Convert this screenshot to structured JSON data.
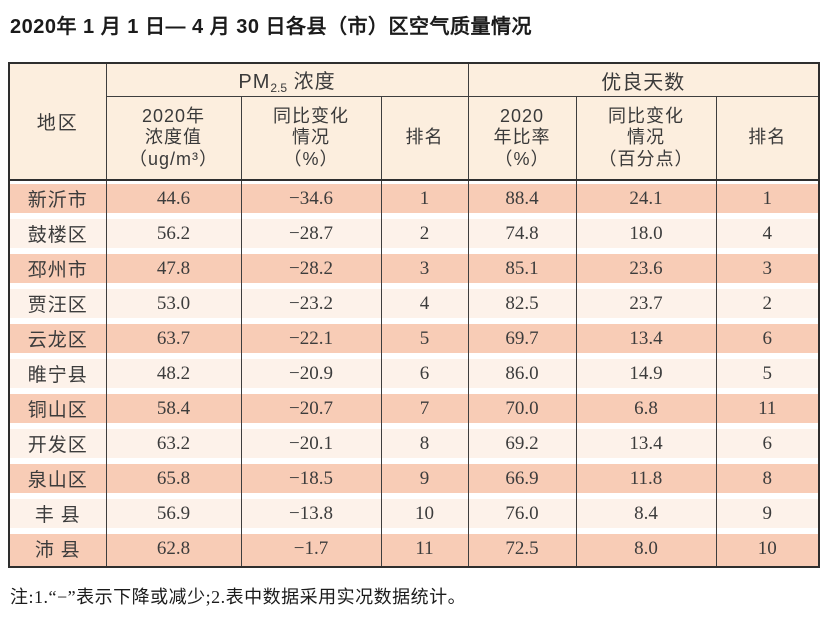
{
  "title": "2020年 1 月 1 日— 4 月 30 日各县（市）区空气质量情况",
  "colors": {
    "row-odd": "#f8ccb6",
    "row-even": "#fdf2ea",
    "header-bg": "#fceede",
    "line": "#3e3e3e",
    "outer": "#2e2e2e"
  },
  "table": {
    "head": {
      "region": "地区",
      "pm25_group": {
        "pm": "PM",
        "sub": "2.5",
        "rest": " 浓度"
      },
      "good_days_group": "优良天数",
      "pm_value": {
        "l1": "2020年",
        "l2": "浓度值",
        "l3": "（ug/m³）"
      },
      "pm_change": {
        "l1": "同比变化",
        "l2": "情况",
        "l3": "（%）"
      },
      "pm_rank": "排名",
      "good_rate": {
        "l1": "2020",
        "l2": "年比率",
        "l3": "（%）"
      },
      "good_change": {
        "l1": "同比变化",
        "l2": "情况",
        "l3": "（百分点）"
      },
      "good_rank": "排名"
    },
    "rows": [
      {
        "region": "新沂市",
        "pm_value": "44.6",
        "pm_change": "−34.6",
        "pm_rank": "1",
        "good_rate": "88.4",
        "good_change": "24.1",
        "good_rank": "1"
      },
      {
        "region": "鼓楼区",
        "pm_value": "56.2",
        "pm_change": "−28.7",
        "pm_rank": "2",
        "good_rate": "74.8",
        "good_change": "18.0",
        "good_rank": "4"
      },
      {
        "region": "邳州市",
        "pm_value": "47.8",
        "pm_change": "−28.2",
        "pm_rank": "3",
        "good_rate": "85.1",
        "good_change": "23.6",
        "good_rank": "3"
      },
      {
        "region": "贾汪区",
        "pm_value": "53.0",
        "pm_change": "−23.2",
        "pm_rank": "4",
        "good_rate": "82.5",
        "good_change": "23.7",
        "good_rank": "2"
      },
      {
        "region": "云龙区",
        "pm_value": "63.7",
        "pm_change": "−22.1",
        "pm_rank": "5",
        "good_rate": "69.7",
        "good_change": "13.4",
        "good_rank": "6"
      },
      {
        "region": "睢宁县",
        "pm_value": "48.2",
        "pm_change": "−20.9",
        "pm_rank": "6",
        "good_rate": "86.0",
        "good_change": "14.9",
        "good_rank": "5"
      },
      {
        "region": "铜山区",
        "pm_value": "58.4",
        "pm_change": "−20.7",
        "pm_rank": "7",
        "good_rate": "70.0",
        "good_change": "6.8",
        "good_rank": "11"
      },
      {
        "region": "开发区",
        "pm_value": "63.2",
        "pm_change": "−20.1",
        "pm_rank": "8",
        "good_rate": "69.2",
        "good_change": "13.4",
        "good_rank": "6"
      },
      {
        "region": "泉山区",
        "pm_value": "65.8",
        "pm_change": "−18.5",
        "pm_rank": "9",
        "good_rate": "66.9",
        "good_change": "11.8",
        "good_rank": "8"
      },
      {
        "region": "丰 县",
        "pm_value": "56.9",
        "pm_change": "−13.8",
        "pm_rank": "10",
        "good_rate": "76.0",
        "good_change": "8.4",
        "good_rank": "9"
      },
      {
        "region": "沛 县",
        "pm_value": "62.8",
        "pm_change": "−1.7",
        "pm_rank": "11",
        "good_rate": "72.5",
        "good_change": "8.0",
        "good_rank": "10"
      }
    ]
  },
  "footnote": "注:1.“−”表示下降或减少;2.表中数据采用实况数据统计。"
}
